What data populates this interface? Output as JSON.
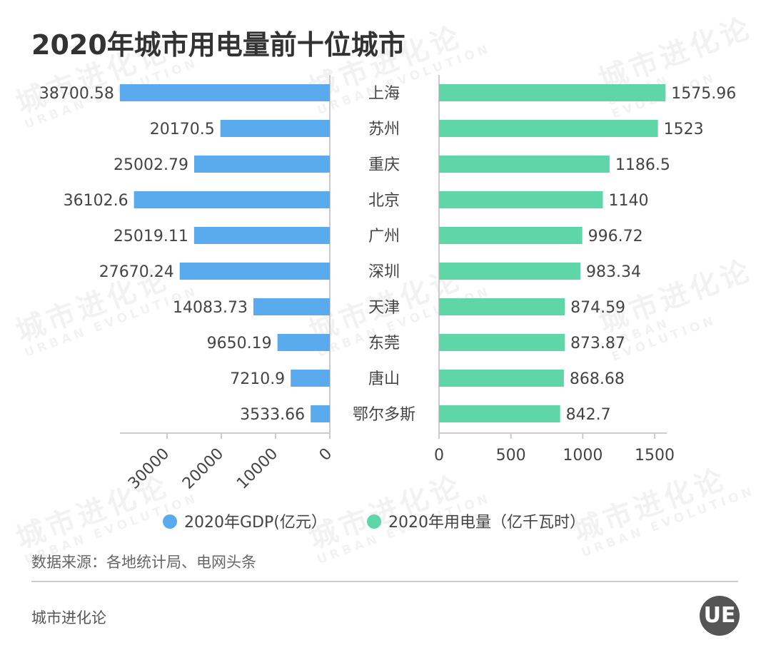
{
  "title": "2020年城市用电量前十位城市",
  "source": "数据来源：各地统计局、电网头条",
  "brand": "城市进化论",
  "logo_text": "UE",
  "watermark": {
    "cn": "城市进化论",
    "en": "URBAN EVOLUTION"
  },
  "chart_data": [
    {
      "type": "bar",
      "orientation": "horizontal",
      "direction": "leftward",
      "categories": [
        "上海",
        "苏州",
        "重庆",
        "北京",
        "广州",
        "深圳",
        "天津",
        "东莞",
        "唐山",
        "鄂尔多斯"
      ],
      "series": [
        {
          "name": "2020年GDP(亿元)",
          "values": [
            38700.58,
            20170.5,
            25002.79,
            36102.6,
            25019.11,
            27670.24,
            14083.73,
            9650.19,
            7210.9,
            3533.66
          ],
          "labels": [
            "38700.58",
            "20170.5",
            "25002.79",
            "36102.6",
            "25019.11",
            "27670.24",
            "14083.73",
            "9650.19",
            "7210.9",
            "3533.66"
          ],
          "color": "#5aabee"
        }
      ],
      "xlim": [
        0,
        38700.58
      ],
      "ticks": [
        "0",
        "10000",
        "20000",
        "30000"
      ],
      "tick_values": [
        0,
        10000,
        20000,
        30000
      ]
    },
    {
      "type": "bar",
      "orientation": "horizontal",
      "categories": [
        "上海",
        "苏州",
        "重庆",
        "北京",
        "广州",
        "深圳",
        "天津",
        "东莞",
        "唐山",
        "鄂尔多斯"
      ],
      "series": [
        {
          "name": "2020年用电量（亿千瓦时）",
          "values": [
            1575.96,
            1523,
            1186.5,
            1140,
            996.72,
            983.34,
            874.59,
            873.87,
            868.68,
            842.7
          ],
          "labels": [
            "1575.96",
            "1523",
            "1186.5",
            "1140",
            "996.72",
            "983.34",
            "874.59",
            "873.87",
            "868.68",
            "842.7"
          ],
          "color": "#5fd6a8"
        }
      ],
      "xlim": [
        0,
        1575.96
      ],
      "ticks": [
        "0",
        "500",
        "1000",
        "1500"
      ],
      "tick_values": [
        0,
        500,
        1000,
        1500
      ]
    }
  ],
  "legend": [
    {
      "label": "2020年GDP(亿元）",
      "color": "#5aabee"
    },
    {
      "label": "2020年用电量（亿千瓦时）",
      "color": "#5fd6a8"
    }
  ]
}
